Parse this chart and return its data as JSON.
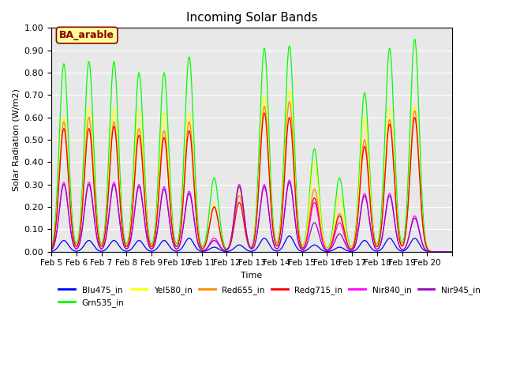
{
  "title": "Incoming Solar Bands",
  "xlabel": "Time",
  "ylabel": "Solar Radiation (W/m2)",
  "ylim": [
    0,
    1.0
  ],
  "annotation": "BA_arable",
  "series": [
    {
      "label": "Blu475_in",
      "band_key": "Blu475",
      "color": "#0000ff"
    },
    {
      "label": "Grn535_in",
      "band_key": "Grn535",
      "color": "#00ff00"
    },
    {
      "label": "Yel580_in",
      "band_key": "Yel580",
      "color": "#ffff00"
    },
    {
      "label": "Red655_in",
      "band_key": "Red655",
      "color": "#ff8800"
    },
    {
      "label": "Redg715_in",
      "band_key": "Redg715",
      "color": "#ff0000"
    },
    {
      "label": "Nir840_in",
      "band_key": "Nir840",
      "color": "#ff00ff"
    },
    {
      "label": "Nir945_in",
      "band_key": "Nir945",
      "color": "#9900cc"
    }
  ],
  "day_peaks": {
    "Feb5": {
      "Grn535": 0.84,
      "Yel580": 0.6,
      "Red655": 0.58,
      "Redg715": 0.55,
      "Nir840": 0.31,
      "Blu475": 0.05,
      "Nir945": 0.3
    },
    "Feb6": {
      "Grn535": 0.85,
      "Yel580": 0.64,
      "Red655": 0.6,
      "Redg715": 0.55,
      "Nir840": 0.31,
      "Blu475": 0.05,
      "Nir945": 0.3
    },
    "Feb7": {
      "Grn535": 0.85,
      "Yel580": 0.64,
      "Red655": 0.58,
      "Redg715": 0.56,
      "Nir840": 0.31,
      "Blu475": 0.05,
      "Nir945": 0.3
    },
    "Feb8": {
      "Grn535": 0.8,
      "Yel580": 0.63,
      "Red655": 0.55,
      "Redg715": 0.52,
      "Nir840": 0.3,
      "Blu475": 0.05,
      "Nir945": 0.29
    },
    "Feb9": {
      "Grn535": 0.8,
      "Yel580": 0.62,
      "Red655": 0.54,
      "Redg715": 0.51,
      "Nir840": 0.29,
      "Blu475": 0.05,
      "Nir945": 0.28
    },
    "Feb10": {
      "Grn535": 0.87,
      "Yel580": 0.62,
      "Red655": 0.58,
      "Redg715": 0.54,
      "Nir840": 0.27,
      "Blu475": 0.06,
      "Nir945": 0.26
    },
    "Feb11": {
      "Grn535": 0.33,
      "Yel580": 0.21,
      "Red655": 0.2,
      "Redg715": 0.2,
      "Nir840": 0.06,
      "Blu475": 0.02,
      "Nir945": 0.05
    },
    "Feb12": {
      "Grn535": 0.3,
      "Yel580": 0.28,
      "Red655": 0.25,
      "Redg715": 0.22,
      "Nir840": 0.3,
      "Blu475": 0.03,
      "Nir945": 0.29
    },
    "Feb13": {
      "Grn535": 0.91,
      "Yel580": 0.7,
      "Red655": 0.65,
      "Redg715": 0.62,
      "Nir840": 0.3,
      "Blu475": 0.06,
      "Nir945": 0.29
    },
    "Feb14": {
      "Grn535": 0.92,
      "Yel580": 0.72,
      "Red655": 0.67,
      "Redg715": 0.6,
      "Nir840": 0.32,
      "Blu475": 0.07,
      "Nir945": 0.31
    },
    "Feb15": {
      "Grn535": 0.46,
      "Yel580": 0.4,
      "Red655": 0.28,
      "Redg715": 0.24,
      "Nir840": 0.22,
      "Blu475": 0.03,
      "Nir945": 0.13
    },
    "Feb16": {
      "Grn535": 0.33,
      "Yel580": 0.25,
      "Red655": 0.17,
      "Redg715": 0.16,
      "Nir840": 0.13,
      "Blu475": 0.02,
      "Nir945": 0.08
    },
    "Feb17": {
      "Grn535": 0.71,
      "Yel580": 0.6,
      "Red655": 0.5,
      "Redg715": 0.47,
      "Nir840": 0.26,
      "Blu475": 0.05,
      "Nir945": 0.25
    },
    "Feb18": {
      "Grn535": 0.91,
      "Yel580": 0.64,
      "Red655": 0.59,
      "Redg715": 0.57,
      "Nir840": 0.26,
      "Blu475": 0.06,
      "Nir945": 0.25
    },
    "Feb19": {
      "Grn535": 0.95,
      "Yel580": 0.65,
      "Red655": 0.63,
      "Redg715": 0.6,
      "Nir840": 0.16,
      "Blu475": 0.06,
      "Nir945": 0.15
    }
  },
  "xtick_positions": [
    0,
    1,
    2,
    3,
    4,
    5,
    6,
    7,
    8,
    9,
    10,
    11,
    12,
    13,
    14,
    15,
    16
  ],
  "xtick_labels": [
    "Feb 5",
    "Feb 6",
    "Feb 7",
    "Feb 8",
    "Feb 9",
    "Feb 10",
    "Feb 11",
    "Feb 12",
    "Feb 13",
    "Feb 14",
    "Feb 15",
    "Feb 16",
    "Feb 17",
    "Feb 18",
    "Feb 19",
    "Feb 20",
    ""
  ],
  "ytick_vals": [
    0.0,
    0.1,
    0.2,
    0.3,
    0.4,
    0.5,
    0.6,
    0.7,
    0.8,
    0.9,
    1.0
  ],
  "ytick_labels": [
    "0.00",
    "0.10",
    "0.20",
    "0.30",
    "0.40",
    "0.50",
    "0.60",
    "0.70",
    "0.80",
    "0.90",
    "1.00"
  ],
  "n_days": 16,
  "day_names": [
    "Feb5",
    "Feb6",
    "Feb7",
    "Feb8",
    "Feb9",
    "Feb10",
    "Feb11",
    "Feb12",
    "Feb13",
    "Feb14",
    "Feb15",
    "Feb16",
    "Feb17",
    "Feb18",
    "Feb19"
  ],
  "sigma": 0.18,
  "pts_per_day": 200
}
